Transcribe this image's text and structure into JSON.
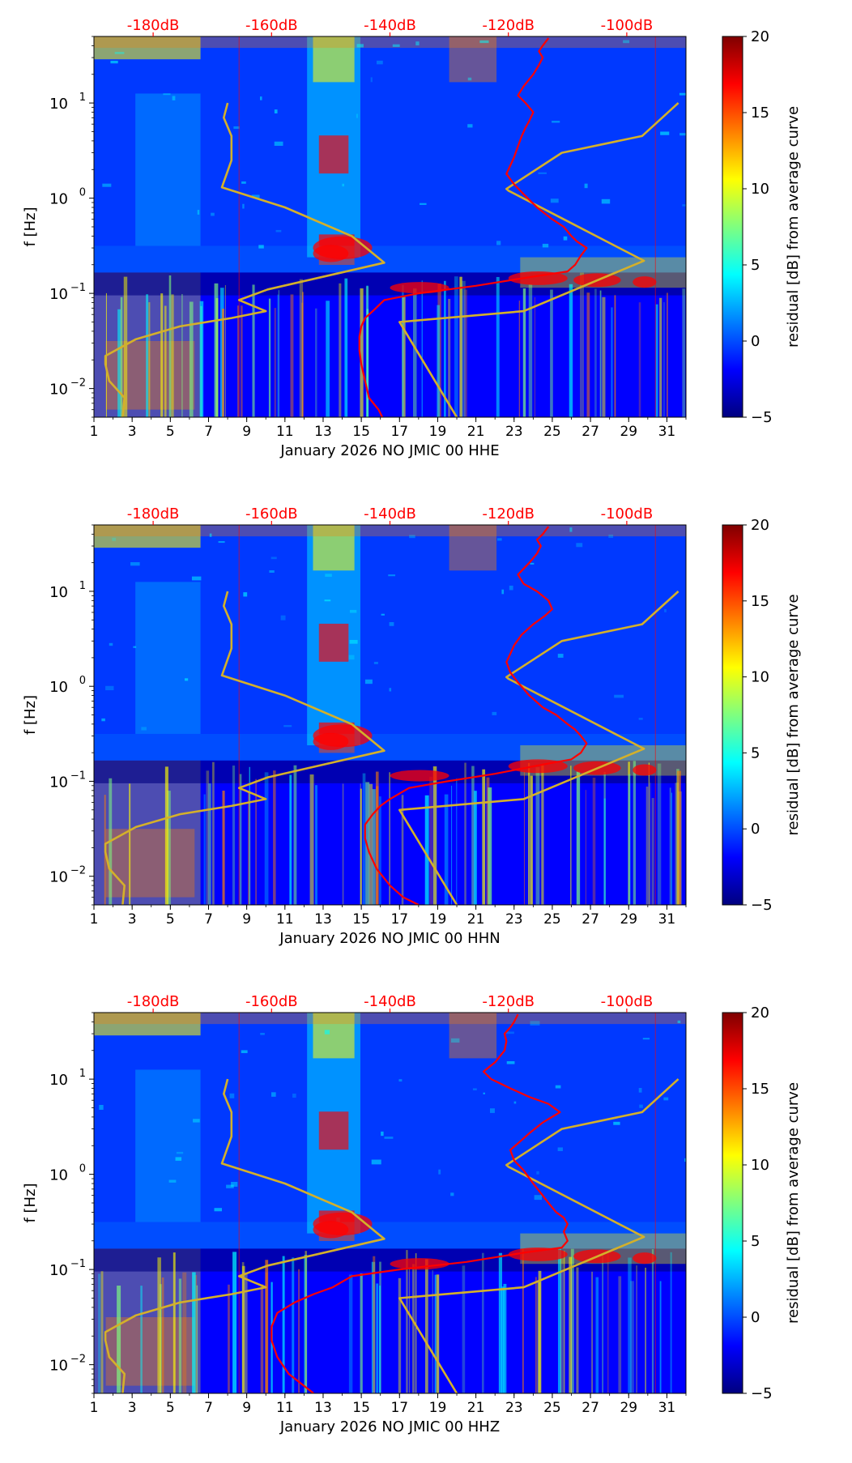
{
  "figure": {
    "background": "#ffffff"
  },
  "colormap": [
    "#00007f",
    "#0000ff",
    "#007fff",
    "#00ffff",
    "#7fff7f",
    "#ffff00",
    "#ff7f00",
    "#ff0000",
    "#7f0000"
  ],
  "colorbar": {
    "label": "residual [dB] from average curve",
    "vmin": -5,
    "vmax": 20,
    "ticks": [
      "20",
      "15",
      "10",
      "5",
      "0",
      "−5"
    ]
  },
  "top_axis": {
    "color": "#ff0000",
    "labels": [
      "-180dB",
      "-160dB",
      "-140dB",
      "-120dB",
      "-100dB"
    ],
    "values": [
      -180,
      -160,
      -140,
      -120,
      -100
    ],
    "range": [
      -190,
      -90
    ]
  },
  "y_axis": {
    "label": "f [Hz]",
    "scale": "log",
    "range": [
      0.005,
      50
    ],
    "ticks": [
      {
        "value": 10,
        "base": "10",
        "exp": "1"
      },
      {
        "value": 1,
        "base": "10",
        "exp": "0"
      },
      {
        "value": 0.1,
        "base": "10",
        "exp": "−1"
      },
      {
        "value": 0.01,
        "base": "10",
        "exp": "−2"
      }
    ]
  },
  "x_axis": {
    "range": [
      1,
      32
    ],
    "tick_values": [
      1,
      3,
      5,
      7,
      9,
      11,
      13,
      15,
      17,
      19,
      21,
      23,
      25,
      27,
      29,
      31
    ],
    "tick_labels": [
      "1",
      "3",
      "5",
      "7",
      "9",
      "11",
      "13",
      "15",
      "17",
      "19",
      "21",
      "23",
      "25",
      "27",
      "29",
      "31"
    ]
  },
  "chart_data": [
    {
      "type": "heatmap",
      "xlabel": "January 2026 NO JMIC 00 HHE",
      "ylabel": "f [Hz]",
      "zlabel": "residual [dB] from average curve",
      "series": [
        {
          "color": "#d4b02a",
          "x_days": [
            2.5,
            2.6,
            1.8,
            1.6,
            1.6,
            3.2,
            5.5,
            8.2,
            10.0,
            8.6,
            10.1,
            16.2,
            14.5,
            11.0,
            7.7,
            8.2,
            8.2,
            7.8,
            8.0
          ],
          "y_hz": [
            0.005,
            0.008,
            0.012,
            0.018,
            0.022,
            0.033,
            0.045,
            0.055,
            0.065,
            0.085,
            0.11,
            0.21,
            0.4,
            0.8,
            1.3,
            2.5,
            4.5,
            7.0,
            10.0
          ]
        },
        {
          "color": "#d4b02a",
          "x_days": [
            31.6,
            29.7,
            25.5,
            22.6,
            22.7,
            25.6,
            29.8,
            23.5,
            17.0,
            20.0
          ],
          "y_hz": [
            10.0,
            4.5,
            3.0,
            1.25,
            1.2,
            0.6,
            0.22,
            0.065,
            0.05,
            0.005
          ]
        },
        {
          "color": "#ff0000",
          "x_days": [
            16.1,
            15.9,
            15.4,
            15.2,
            15.0,
            14.9,
            14.9,
            15.0,
            15.2,
            15.6,
            16.2,
            18.0,
            21.0,
            24.0,
            25.8,
            26.2,
            26.5,
            26.8,
            26.3,
            26.0,
            25.6,
            25.0,
            24.2,
            23.5,
            23.0,
            22.6,
            22.8,
            23.0,
            23.2,
            23.4,
            23.6,
            23.8,
            24.0,
            23.6,
            23.2,
            23.5,
            24.0,
            24.3,
            24.5,
            24.3,
            24.5,
            24.8
          ],
          "y_hz": [
            0.005,
            0.006,
            0.008,
            0.012,
            0.018,
            0.025,
            0.035,
            0.045,
            0.055,
            0.065,
            0.085,
            0.1,
            0.12,
            0.15,
            0.17,
            0.2,
            0.25,
            0.3,
            0.35,
            0.4,
            0.5,
            0.6,
            0.8,
            1.1,
            1.4,
            1.8,
            2.2,
            2.7,
            3.5,
            4.5,
            5.5,
            6.5,
            8.0,
            10.0,
            12.0,
            15.0,
            20.0,
            25.0,
            30.0,
            35.0,
            40.0,
            48.0
          ]
        }
      ]
    },
    {
      "type": "heatmap",
      "xlabel": "January 2026 NO JMIC 00 HHN",
      "ylabel": "f [Hz]",
      "zlabel": "residual [dB] from average curve",
      "series": [
        {
          "color": "#d4b02a",
          "x_days": [
            2.5,
            2.6,
            1.8,
            1.6,
            1.6,
            3.2,
            5.5,
            8.2,
            10.0,
            8.6,
            10.1,
            16.2,
            14.5,
            11.0,
            7.7,
            8.2,
            8.2,
            7.8,
            8.0
          ],
          "y_hz": [
            0.005,
            0.008,
            0.012,
            0.018,
            0.022,
            0.033,
            0.045,
            0.055,
            0.065,
            0.085,
            0.11,
            0.21,
            0.4,
            0.8,
            1.3,
            2.5,
            4.5,
            7.0,
            10.0
          ]
        },
        {
          "color": "#d4b02a",
          "x_days": [
            31.6,
            29.7,
            25.5,
            22.6,
            22.7,
            25.6,
            29.8,
            23.5,
            17.0,
            20.0
          ],
          "y_hz": [
            10.0,
            4.5,
            3.0,
            1.25,
            1.2,
            0.6,
            0.22,
            0.065,
            0.05,
            0.005
          ]
        },
        {
          "color": "#ff0000",
          "x_days": [
            18.0,
            17.2,
            16.5,
            15.8,
            15.4,
            15.2,
            15.2,
            15.6,
            16.0,
            16.5,
            17.5,
            19.5,
            22.0,
            24.5,
            26.0,
            26.5,
            26.8,
            26.5,
            26.2,
            25.8,
            25.2,
            24.5,
            23.8,
            23.2,
            22.8,
            22.6,
            22.8,
            23.0,
            23.4,
            24.0,
            24.6,
            25.0,
            24.8,
            24.2,
            23.5,
            23.2,
            23.8,
            24.2,
            24.4,
            24.2,
            24.5,
            24.8
          ],
          "y_hz": [
            0.005,
            0.006,
            0.008,
            0.012,
            0.018,
            0.025,
            0.035,
            0.045,
            0.055,
            0.065,
            0.085,
            0.1,
            0.12,
            0.15,
            0.17,
            0.2,
            0.25,
            0.3,
            0.35,
            0.4,
            0.5,
            0.6,
            0.8,
            1.1,
            1.4,
            1.8,
            2.2,
            2.7,
            3.5,
            4.5,
            5.5,
            6.5,
            8.0,
            10.0,
            12.0,
            15.0,
            20.0,
            25.0,
            30.0,
            35.0,
            40.0,
            48.0
          ]
        }
      ]
    },
    {
      "type": "heatmap",
      "xlabel": "January 2026 NO JMIC 00 HHZ",
      "ylabel": "f [Hz]",
      "zlabel": "residual [dB] from average curve",
      "series": [
        {
          "color": "#d4b02a",
          "x_days": [
            2.5,
            2.6,
            1.8,
            1.6,
            1.6,
            3.2,
            5.5,
            8.2,
            10.0,
            8.6,
            10.1,
            16.2,
            14.5,
            11.0,
            7.7,
            8.2,
            8.2,
            7.8,
            8.0
          ],
          "y_hz": [
            0.005,
            0.008,
            0.012,
            0.018,
            0.022,
            0.033,
            0.045,
            0.055,
            0.065,
            0.085,
            0.11,
            0.21,
            0.4,
            0.8,
            1.3,
            2.5,
            4.5,
            7.0,
            10.0
          ]
        },
        {
          "color": "#d4b02a",
          "x_days": [
            31.6,
            29.7,
            25.5,
            22.6,
            22.7,
            25.6,
            29.8,
            23.5,
            17.0,
            20.0
          ],
          "y_hz": [
            10.0,
            4.5,
            3.0,
            1.25,
            1.2,
            0.6,
            0.22,
            0.065,
            0.05,
            0.005
          ]
        },
        {
          "color": "#ff0000",
          "x_days": [
            12.5,
            12.0,
            11.2,
            10.6,
            10.3,
            10.3,
            10.6,
            11.5,
            12.5,
            13.5,
            14.5,
            17.0,
            20.5,
            23.5,
            25.5,
            25.8,
            25.6,
            25.8,
            25.6,
            25.2,
            24.8,
            24.5,
            24.0,
            23.5,
            23.0,
            22.8,
            23.3,
            23.8,
            24.5,
            25.4,
            24.8,
            23.8,
            22.8,
            21.8,
            21.4,
            22.0,
            22.5,
            22.6,
            22.5,
            22.8,
            23.0,
            23.2
          ],
          "y_hz": [
            0.005,
            0.006,
            0.008,
            0.012,
            0.018,
            0.025,
            0.035,
            0.045,
            0.055,
            0.065,
            0.085,
            0.1,
            0.12,
            0.15,
            0.17,
            0.2,
            0.25,
            0.3,
            0.35,
            0.4,
            0.5,
            0.6,
            0.8,
            1.1,
            1.4,
            1.8,
            2.2,
            2.7,
            3.5,
            4.5,
            5.5,
            6.5,
            8.0,
            10.0,
            12.0,
            15.0,
            20.0,
            25.0,
            30.0,
            35.0,
            40.0,
            48.0
          ]
        }
      ]
    }
  ]
}
